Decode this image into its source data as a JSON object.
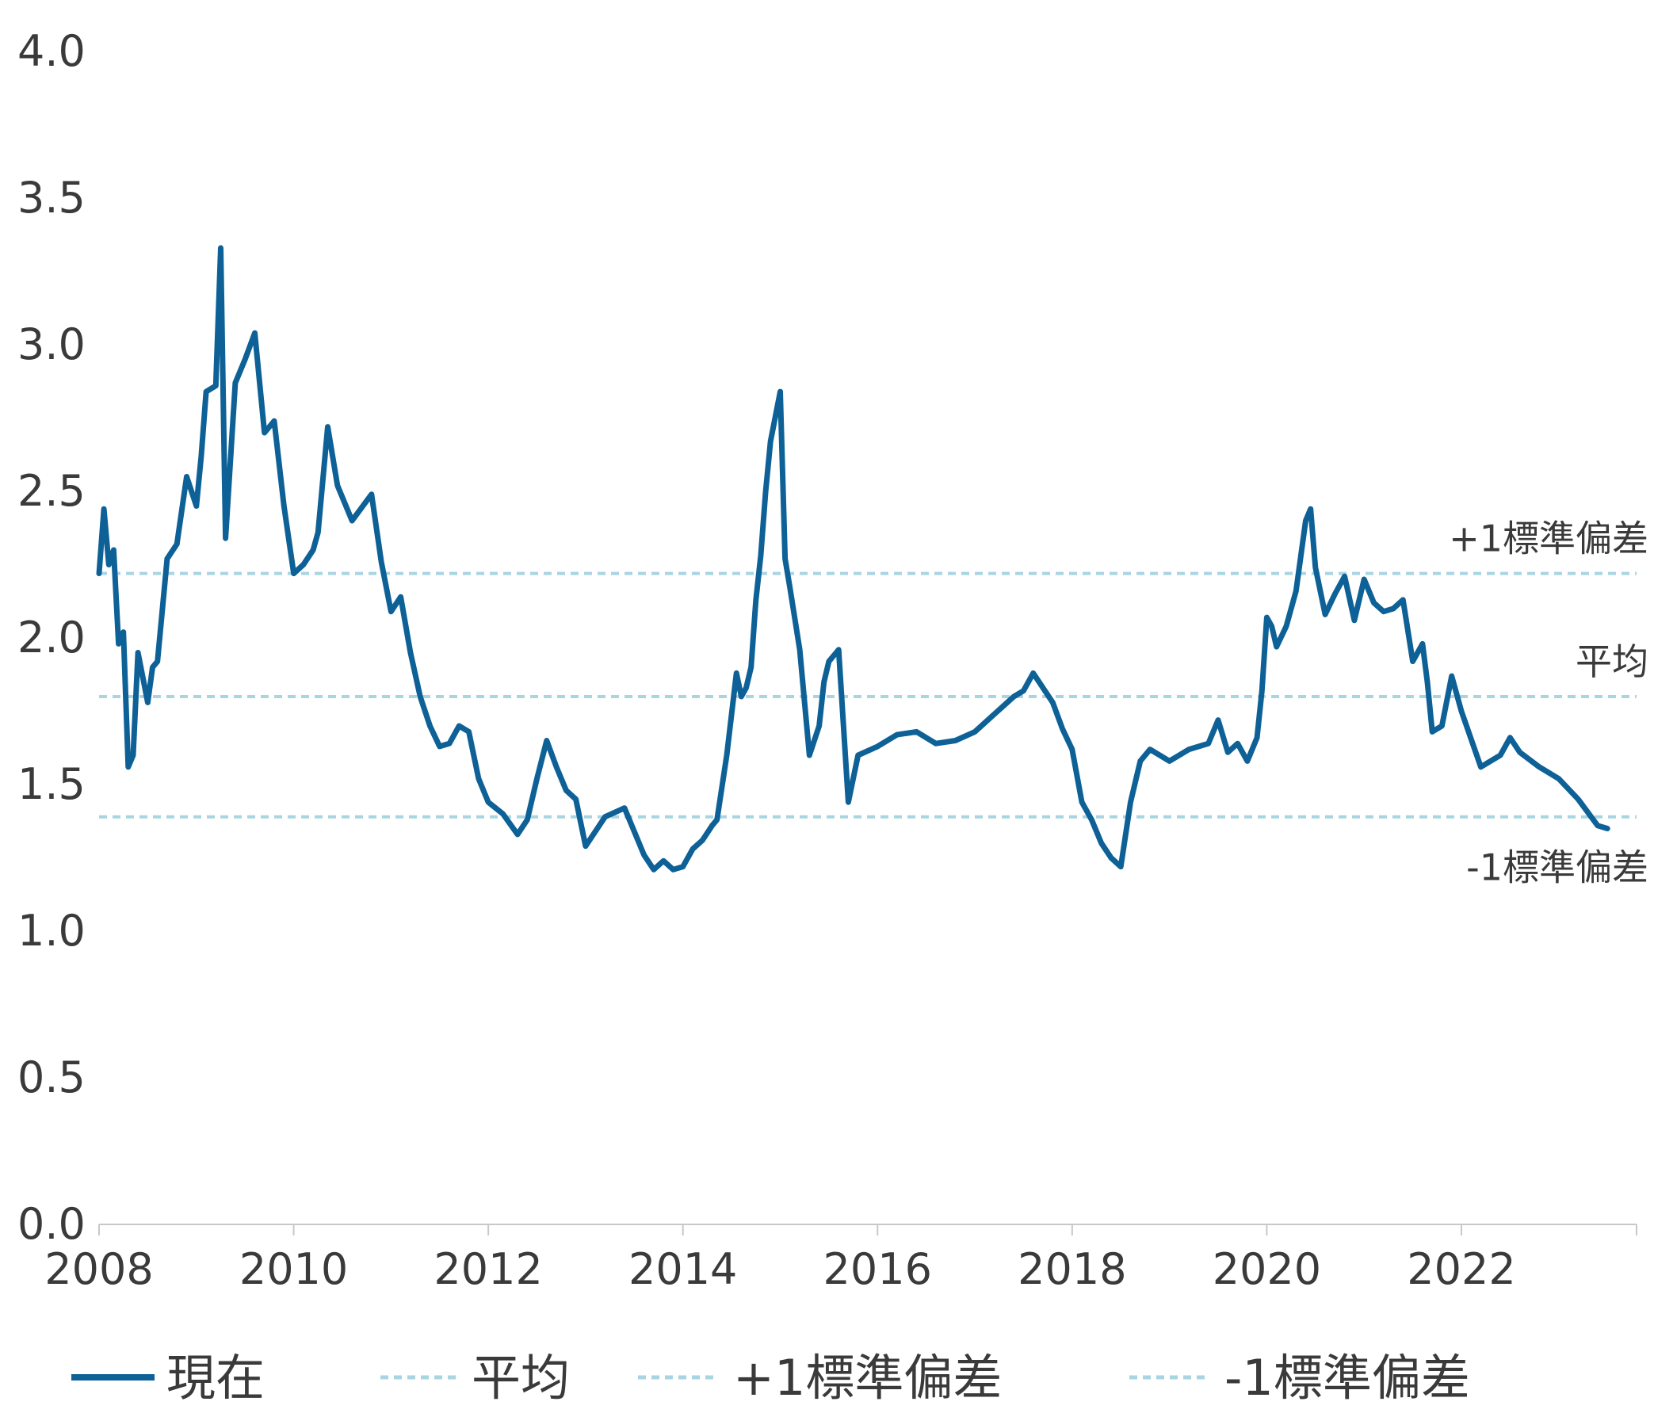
{
  "chart_data": {
    "type": "line",
    "title": "",
    "xlabel": "",
    "ylabel": "",
    "xlim": [
      2008,
      2023.8
    ],
    "ylim": [
      0,
      4
    ],
    "y_ticks": [
      "0.0",
      "0.5",
      "1.0",
      "1.5",
      "2.0",
      "2.5",
      "3.0",
      "3.5",
      "4.0"
    ],
    "x_ticks": [
      "2008",
      "2010",
      "2012",
      "2014",
      "2016",
      "2018",
      "2020",
      "2022"
    ],
    "grid": false,
    "legend_position": "bottom",
    "colors": {
      "current": "#0e6196",
      "reference": "#a9d5e3"
    },
    "reference_lines": [
      {
        "key": "plus1",
        "label": "+1標準偏差",
        "value": 2.22
      },
      {
        "key": "mean",
        "label": "平均",
        "value": 1.8
      },
      {
        "key": "minus1",
        "label": "-1標準偏差",
        "value": 1.39
      }
    ],
    "series": [
      {
        "name": "現在",
        "x": [
          2008.0,
          2008.05,
          2008.1,
          2008.15,
          2008.2,
          2008.25,
          2008.3,
          2008.35,
          2008.4,
          2008.5,
          2008.55,
          2008.6,
          2008.7,
          2008.8,
          2008.9,
          2009.0,
          2009.05,
          2009.1,
          2009.2,
          2009.25,
          2009.3,
          2009.4,
          2009.5,
          2009.6,
          2009.7,
          2009.8,
          2009.9,
          2010.0,
          2010.1,
          2010.2,
          2010.25,
          2010.35,
          2010.45,
          2010.6,
          2010.8,
          2010.9,
          2011.0,
          2011.1,
          2011.2,
          2011.3,
          2011.4,
          2011.5,
          2011.6,
          2011.7,
          2011.8,
          2011.9,
          2012.0,
          2012.15,
          2012.3,
          2012.4,
          2012.5,
          2012.6,
          2012.7,
          2012.8,
          2012.9,
          2013.0,
          2013.2,
          2013.4,
          2013.6,
          2013.7,
          2013.8,
          2013.9,
          2014.0,
          2014.1,
          2014.2,
          2014.3,
          2014.35,
          2014.45,
          2014.55,
          2014.6,
          2014.65,
          2014.7,
          2014.75,
          2014.8,
          2014.85,
          2014.9,
          2015.0,
          2015.05,
          2015.1,
          2015.2,
          2015.3,
          2015.4,
          2015.45,
          2015.5,
          2015.6,
          2015.7,
          2015.8,
          2016.0,
          2016.2,
          2016.4,
          2016.6,
          2016.8,
          2017.0,
          2017.2,
          2017.4,
          2017.5,
          2017.6,
          2017.7,
          2017.8,
          2017.9,
          2018.0,
          2018.1,
          2018.2,
          2018.3,
          2018.4,
          2018.5,
          2018.6,
          2018.7,
          2018.8,
          2019.0,
          2019.2,
          2019.4,
          2019.5,
          2019.6,
          2019.7,
          2019.8,
          2019.9,
          2019.95,
          2020.0,
          2020.05,
          2020.1,
          2020.2,
          2020.3,
          2020.4,
          2020.45,
          2020.5,
          2020.6,
          2020.7,
          2020.8,
          2020.9,
          2021.0,
          2021.1,
          2021.2,
          2021.3,
          2021.4,
          2021.5,
          2021.6,
          2021.65,
          2021.7,
          2021.8,
          2021.9,
          2022.0,
          2022.2,
          2022.4,
          2022.5,
          2022.6,
          2022.8,
          2023.0,
          2023.2,
          2023.4,
          2023.5
        ],
        "values": [
          2.22,
          2.44,
          2.25,
          2.3,
          1.98,
          2.02,
          1.56,
          1.6,
          1.95,
          1.78,
          1.9,
          1.92,
          2.27,
          2.32,
          2.55,
          2.45,
          2.62,
          2.84,
          2.86,
          3.33,
          2.34,
          2.87,
          2.95,
          3.04,
          2.7,
          2.74,
          2.45,
          2.22,
          2.25,
          2.3,
          2.36,
          2.72,
          2.52,
          2.4,
          2.49,
          2.26,
          2.09,
          2.14,
          1.95,
          1.8,
          1.7,
          1.63,
          1.64,
          1.7,
          1.68,
          1.52,
          1.44,
          1.4,
          1.33,
          1.38,
          1.52,
          1.65,
          1.56,
          1.48,
          1.45,
          1.29,
          1.39,
          1.42,
          1.26,
          1.21,
          1.24,
          1.21,
          1.22,
          1.28,
          1.31,
          1.36,
          1.38,
          1.6,
          1.88,
          1.8,
          1.83,
          1.9,
          2.13,
          2.28,
          2.5,
          2.67,
          2.84,
          2.27,
          2.17,
          1.96,
          1.6,
          1.7,
          1.85,
          1.92,
          1.96,
          1.44,
          1.6,
          1.63,
          1.67,
          1.68,
          1.64,
          1.65,
          1.68,
          1.74,
          1.8,
          1.82,
          1.88,
          1.83,
          1.78,
          1.69,
          1.62,
          1.44,
          1.38,
          1.3,
          1.25,
          1.22,
          1.44,
          1.58,
          1.62,
          1.58,
          1.62,
          1.64,
          1.72,
          1.61,
          1.64,
          1.58,
          1.66,
          1.82,
          2.07,
          2.04,
          1.97,
          2.04,
          2.16,
          2.4,
          2.44,
          2.24,
          2.08,
          2.15,
          2.21,
          2.06,
          2.2,
          2.12,
          2.09,
          2.1,
          2.13,
          1.92,
          1.98,
          1.85,
          1.68,
          1.7,
          1.87,
          1.75,
          1.56,
          1.6,
          1.66,
          1.61,
          1.56,
          1.52,
          1.45,
          1.36,
          1.35
        ]
      }
    ]
  },
  "legend": {
    "current": "現在",
    "mean": "平均",
    "plus1": "+1標準偏差",
    "minus1": "-1標準偏差"
  }
}
